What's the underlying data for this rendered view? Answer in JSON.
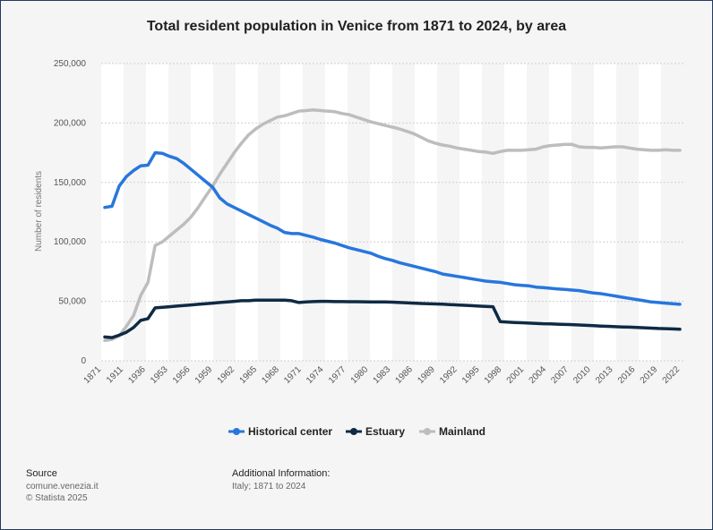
{
  "colors": {
    "historical": "#2876dd",
    "estuary": "#0f2a44",
    "mainland": "#bdbdbd"
  },
  "source": {
    "heading": "Source",
    "line1": "comune.venezia.it",
    "line2": "© Statista 2025"
  },
  "info": {
    "heading": "Additional Information:",
    "line1": "Italy; 1871 to 2024"
  },
  "chart_data": {
    "type": "line",
    "title": "Total resident population in Venice from 1871 to 2024, by area",
    "xlabel": "",
    "ylabel": "Number of residents",
    "ylim": [
      0,
      250000
    ],
    "yticks": [
      "0",
      "50,000",
      "100,000",
      "150,000",
      "200,000",
      "250,000"
    ],
    "xticks": [
      "1871",
      "1911",
      "1936",
      "1953",
      "1956",
      "1959",
      "1962",
      "1965",
      "1968",
      "1971",
      "1974",
      "1977",
      "1980",
      "1983",
      "1986",
      "1989",
      "1992",
      "1995",
      "1998",
      "2001",
      "2004",
      "2007",
      "2010",
      "2013",
      "2016",
      "2019",
      "2022"
    ],
    "grid": true,
    "legend_position": "bottom",
    "x": [
      "1871",
      "1881",
      "1901",
      "1911",
      "1921",
      "1931",
      "1936",
      "1951",
      "1952",
      "1953",
      "1954",
      "1955",
      "1956",
      "1957",
      "1958",
      "1959",
      "1960",
      "1961",
      "1962",
      "1963",
      "1964",
      "1965",
      "1966",
      "1967",
      "1968",
      "1969",
      "1970",
      "1971",
      "1972",
      "1973",
      "1974",
      "1975",
      "1976",
      "1977",
      "1978",
      "1979",
      "1980",
      "1981",
      "1982",
      "1983",
      "1984",
      "1985",
      "1986",
      "1987",
      "1988",
      "1989",
      "1990",
      "1991",
      "1992",
      "1993",
      "1994",
      "1995",
      "1996",
      "1997",
      "1998",
      "1999",
      "2000",
      "2001",
      "2002",
      "2003",
      "2004",
      "2005",
      "2006",
      "2007",
      "2008",
      "2009",
      "2010",
      "2011",
      "2012",
      "2013",
      "2014",
      "2015",
      "2016",
      "2017",
      "2018",
      "2019",
      "2020",
      "2021",
      "2022",
      "2023",
      "2024"
    ],
    "series": [
      {
        "name": "Historical center",
        "values": [
          129000,
          130000,
          147000,
          155000,
          160000,
          164000,
          164500,
          175000,
          174500,
          172000,
          170000,
          166000,
          161000,
          156000,
          151000,
          146000,
          137000,
          132000,
          129000,
          126000,
          123000,
          120000,
          117000,
          114000,
          111500,
          108000,
          107000,
          107000,
          105500,
          104000,
          102000,
          100500,
          99000,
          97000,
          95000,
          93500,
          92000,
          90500,
          88000,
          86000,
          84500,
          82500,
          81000,
          79500,
          78000,
          76500,
          75000,
          73000,
          72000,
          71000,
          70000,
          69000,
          68000,
          67000,
          66500,
          66000,
          65000,
          64000,
          63500,
          63000,
          62000,
          61500,
          61000,
          60500,
          60000,
          59500,
          59000,
          58000,
          57000,
          56500,
          55500,
          54500,
          53500,
          52500,
          51500,
          50500,
          49500,
          49000,
          48500,
          48000,
          47500
        ]
      },
      {
        "name": "Estuary",
        "values": [
          20000,
          19500,
          21500,
          24000,
          28000,
          34000,
          35500,
          44500,
          45000,
          45500,
          46000,
          46500,
          47000,
          47500,
          48000,
          48500,
          49000,
          49500,
          50000,
          50500,
          50500,
          51000,
          51000,
          51000,
          51000,
          51000,
          50500,
          49000,
          49500,
          49800,
          50000,
          50000,
          49800,
          49800,
          49700,
          49700,
          49600,
          49500,
          49500,
          49500,
          49300,
          49000,
          48800,
          48500,
          48200,
          48000,
          47800,
          47600,
          47300,
          47000,
          46700,
          46400,
          46000,
          45700,
          45500,
          33000,
          32500,
          32200,
          32000,
          31700,
          31500,
          31200,
          31000,
          30800,
          30600,
          30400,
          30100,
          29800,
          29500,
          29200,
          29000,
          28700,
          28500,
          28300,
          28000,
          27800,
          27500,
          27200,
          27000,
          26800,
          26500
        ]
      },
      {
        "name": "Mainland",
        "values": [
          17000,
          18000,
          21000,
          29000,
          38000,
          55000,
          66000,
          97000,
          100000,
          105000,
          110000,
          115000,
          121000,
          129000,
          138000,
          147000,
          157000,
          166000,
          175000,
          183000,
          190000,
          195000,
          199000,
          202000,
          205000,
          206000,
          208000,
          210000,
          210500,
          211000,
          210500,
          210000,
          209500,
          208000,
          207000,
          205000,
          203000,
          201000,
          199500,
          198000,
          196500,
          195000,
          193000,
          191000,
          188000,
          185000,
          183000,
          181500,
          180500,
          179000,
          178000,
          177000,
          176000,
          175500,
          174500,
          176000,
          177000,
          177000,
          177000,
          177500,
          178000,
          180000,
          181000,
          181500,
          182000,
          182000,
          180000,
          179500,
          179500,
          179000,
          179500,
          180000,
          180000,
          179000,
          178000,
          177500,
          177000,
          177000,
          177500,
          177000,
          177000
        ]
      }
    ]
  }
}
